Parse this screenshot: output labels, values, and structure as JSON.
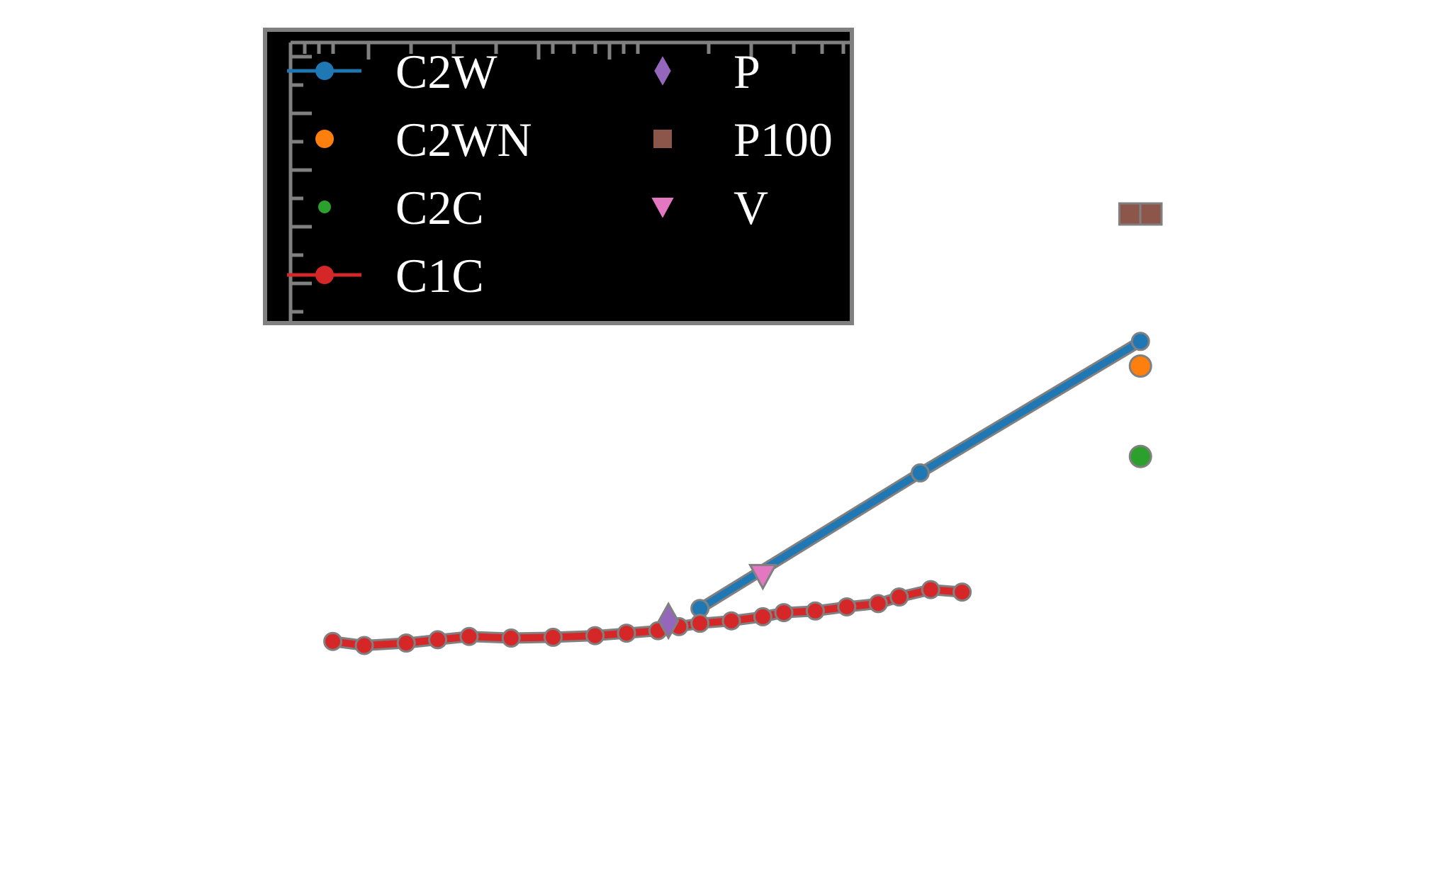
{
  "chart_data": {
    "type": "line",
    "title": "",
    "xlabel": "",
    "ylabel": "",
    "xlim": [
      0,
      100
    ],
    "ylim": [
      0,
      100
    ],
    "grid": false,
    "legend_placement": "top-left",
    "series": [
      {
        "name": "C2W",
        "color": "#1f77b4",
        "marker": "circle",
        "line": true,
        "points": [
          [
            37.0,
            32.0
          ],
          [
            58.0,
            48.5
          ],
          [
            79.0,
            64.5
          ]
        ]
      },
      {
        "name": "C2WN",
        "color": "#ff7f0e",
        "marker": "circle",
        "line": false,
        "points": [
          [
            79.0,
            61.5
          ]
        ]
      },
      {
        "name": "C2C",
        "color": "#2ca02c",
        "marker": "circle",
        "line": false,
        "points": [
          [
            79.0,
            50.5
          ]
        ]
      },
      {
        "name": "C1C",
        "color": "#d62728",
        "marker": "circle",
        "line": true,
        "points": [
          [
            2.0,
            28.0
          ],
          [
            5.0,
            27.5
          ],
          [
            9.0,
            27.8
          ],
          [
            12.0,
            28.2
          ],
          [
            15.0,
            28.6
          ],
          [
            19.0,
            28.4
          ],
          [
            23.0,
            28.5
          ],
          [
            27.0,
            28.7
          ],
          [
            30.0,
            29.0
          ],
          [
            33.0,
            29.3
          ],
          [
            35.0,
            29.8
          ],
          [
            37.0,
            30.2
          ],
          [
            40.0,
            30.5
          ],
          [
            43.0,
            31.0
          ],
          [
            45.0,
            31.5
          ],
          [
            48.0,
            31.7
          ],
          [
            51.0,
            32.2
          ],
          [
            54.0,
            32.6
          ],
          [
            56.0,
            33.4
          ],
          [
            59.0,
            34.3
          ],
          [
            62.0,
            34.0
          ]
        ]
      },
      {
        "name": "P",
        "color": "#9467bd",
        "marker": "diamond",
        "line": false,
        "points": [
          [
            34.0,
            30.5
          ]
        ]
      },
      {
        "name": "P100",
        "color": "#8c564b",
        "marker": "square",
        "line": false,
        "points": [
          [
            78.0,
            80.0
          ],
          [
            80.0,
            80.0
          ]
        ]
      },
      {
        "name": "V",
        "color": "#e377c2",
        "marker": "triangle-down",
        "line": false,
        "points": [
          [
            43.0,
            36.0
          ]
        ]
      }
    ]
  }
}
